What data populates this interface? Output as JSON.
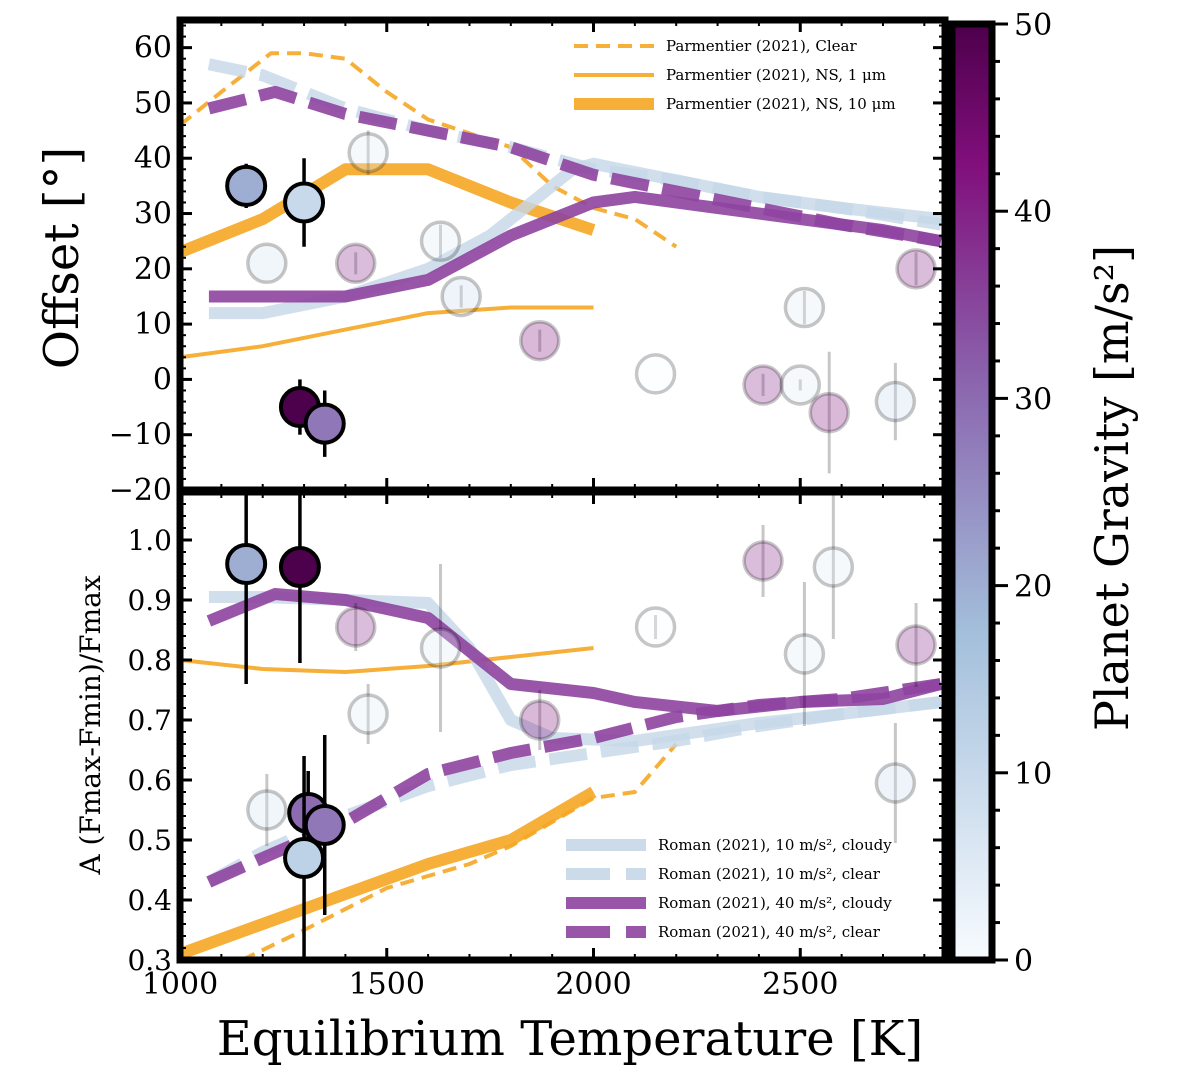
{
  "chart_data": {
    "type": "scatter",
    "xlabel": "Equilibrium Temperature [K]",
    "xlim": [
      1000,
      2850
    ],
    "x_ticks": [
      "1000",
      "1500",
      "2000",
      "2500"
    ],
    "x_tick_values": [
      1000,
      1500,
      2000,
      2500
    ],
    "colorbar": {
      "label": "Planet Gravity [m/s²]",
      "range": [
        0,
        50
      ],
      "tick_values": [
        0,
        10,
        20,
        30,
        40,
        50
      ],
      "tick_labels": [
        "0",
        "10",
        "20",
        "30",
        "40",
        "50"
      ],
      "colors": [
        "#f7fbff",
        "#a3bfdb",
        "#8c6bb1",
        "#810f7c",
        "#4d004b"
      ]
    },
    "panels": [
      {
        "id": "top",
        "ylabel": "Offset [°]",
        "ylim": [
          -20,
          65
        ],
        "y_ticks": [
          "60",
          "50",
          "40",
          "30",
          "20",
          "10",
          "0",
          "−10",
          "−20"
        ],
        "y_tick_values": [
          60,
          50,
          40,
          30,
          20,
          10,
          0,
          -10,
          -20
        ],
        "models": [
          {
            "name": "Parmentier (2021), Clear",
            "color": "#f5a623",
            "style": "dashed-thin",
            "x": [
              1000,
              1100,
              1220,
              1300,
              1400,
              1500,
              1600,
              1800,
              1900,
              2000,
              2100,
              2200
            ],
            "y": [
              46,
              52,
              59,
              59,
              58,
              52,
              47,
              42,
              35,
              31,
              29,
              24
            ]
          },
          {
            "name": "Parmentier (2021), NS, 1 μm",
            "color": "#f5a623",
            "style": "solid-thin",
            "x": [
              1000,
              1200,
              1400,
              1600,
              1800,
              2000
            ],
            "y": [
              4,
              6,
              9,
              12,
              13,
              13
            ]
          },
          {
            "name": "Parmentier (2021), NS, 10 μm",
            "color": "#f5a623",
            "style": "solid-thick",
            "x": [
              1000,
              1200,
              1400,
              1600,
              1800,
              2000
            ],
            "y": [
              23,
              29,
              38,
              38,
              32,
              27
            ]
          },
          {
            "name": "Roman (2021), 10 m/s², cloudy",
            "color": "#c6d7e8",
            "style": "solid-thick",
            "x": [
              1070,
              1200,
              1400,
              1600,
              1750,
              1850,
              1950,
              2000,
              2200,
              2400,
              2600,
              2840
            ],
            "y": [
              12,
              12,
              15,
              20,
              26,
              32,
              38,
              39,
              36,
              33,
              31,
              29
            ]
          },
          {
            "name": "Roman (2021), 10 m/s², clear",
            "color": "#c6d7e8",
            "style": "dashed-thick",
            "x": [
              1070,
              1200,
              1400,
              1600,
              1800,
              2000,
              2200,
              2400,
              2600,
              2840
            ],
            "y": [
              57,
              55,
              49,
              45,
              42,
              38,
              36,
              33,
              31,
              28
            ]
          },
          {
            "name": "Roman (2021), 40 m/s², cloudy",
            "color": "#8e44a0",
            "style": "solid-thick",
            "x": [
              1070,
              1200,
              1400,
              1600,
              1800,
              2000,
              2100,
              2300,
              2500,
              2700,
              2840
            ],
            "y": [
              15,
              15,
              15,
              18,
              26,
              32,
              33,
              31,
              29,
              27,
              25
            ]
          },
          {
            "name": "Roman (2021), 40 m/s², clear",
            "color": "#8e44a0",
            "style": "dashed-thick",
            "x": [
              1070,
              1230,
              1400,
              1600,
              1800,
              2000,
              2200,
              2400,
              2600,
              2840
            ],
            "y": [
              49,
              52,
              48,
              45,
              42,
              37,
              34,
              31,
              28,
              25
            ]
          }
        ],
        "highlighted_points": [
          {
            "x": 1160,
            "y": 35,
            "err": 4,
            "gravity": 20
          },
          {
            "x": 1300,
            "y": 32,
            "err": 8,
            "gravity": 10
          },
          {
            "x": 1290,
            "y": -5,
            "err": 5,
            "gravity": 50
          },
          {
            "x": 1350,
            "y": -8,
            "err": 6,
            "gravity": 28
          }
        ],
        "faded_points": [
          {
            "x": 1210,
            "y": 21,
            "err": 0,
            "gravity": 8
          },
          {
            "x": 1455,
            "y": 41,
            "err": 4,
            "gravity": 5
          },
          {
            "x": 1425,
            "y": 21,
            "err": 2,
            "gravity": 40
          },
          {
            "x": 1630,
            "y": 25,
            "err": 3,
            "gravity": 5
          },
          {
            "x": 1680,
            "y": 15,
            "err": 2,
            "gravity": 10
          },
          {
            "x": 1870,
            "y": 7,
            "err": 2,
            "gravity": 42
          },
          {
            "x": 2150,
            "y": 1,
            "err": 0,
            "gravity": 0
          },
          {
            "x": 2410,
            "y": -1,
            "err": 2,
            "gravity": 40
          },
          {
            "x": 2500,
            "y": -1,
            "err": 1,
            "gravity": 5
          },
          {
            "x": 2510,
            "y": 13,
            "err": 3,
            "gravity": 5
          },
          {
            "x": 2570,
            "y": -6,
            "err": 11,
            "gravity": 42
          },
          {
            "x": 2730,
            "y": -4,
            "err": 7,
            "gravity": 10
          },
          {
            "x": 2780,
            "y": 20,
            "err": 3,
            "gravity": 40
          }
        ]
      },
      {
        "id": "bottom",
        "ylabel": "A (Fmax-Fmin)/Fmax",
        "ylim": [
          0.3,
          1.08
        ],
        "y_ticks": [
          "1.0",
          "0.9",
          "0.8",
          "0.7",
          "0.6",
          "0.5",
          "0.4",
          "0.3"
        ],
        "y_tick_values": [
          1.0,
          0.9,
          0.8,
          0.7,
          0.6,
          0.5,
          0.4,
          0.3
        ],
        "models": [
          {
            "name": "Parmentier (2021), Clear",
            "color": "#f5a623",
            "style": "dashed-thin",
            "x": [
              1150,
              1300,
              1500,
              1700,
              1800,
              1900,
              2000,
              2100,
              2200
            ],
            "y": [
              0.3,
              0.35,
              0.42,
              0.46,
              0.49,
              0.53,
              0.57,
              0.58,
              0.66
            ]
          },
          {
            "name": "Parmentier (2021), NS, 1 μm",
            "color": "#f5a623",
            "style": "solid-thin",
            "x": [
              1000,
              1200,
              1400,
              1600,
              1800,
              2000
            ],
            "y": [
              0.8,
              0.785,
              0.78,
              0.79,
              0.805,
              0.82
            ]
          },
          {
            "name": "Parmentier (2021), NS, 10 μm",
            "color": "#f5a623",
            "style": "solid-thick",
            "x": [
              1000,
              1200,
              1400,
              1600,
              1800,
              2000
            ],
            "y": [
              0.31,
              0.36,
              0.41,
              0.46,
              0.5,
              0.58
            ]
          },
          {
            "name": "Roman (2021), 10 m/s², cloudy",
            "color": "#c6d7e8",
            "style": "solid-thick",
            "x": [
              1070,
              1200,
              1400,
              1600,
              1700,
              1800,
              1900,
              2100,
              2400,
              2600,
              2840
            ],
            "y": [
              0.905,
              0.905,
              0.9,
              0.895,
              0.82,
              0.7,
              0.67,
              0.665,
              0.695,
              0.71,
              0.73
            ]
          },
          {
            "name": "Roman (2021), 10 m/s², clear",
            "color": "#c6d7e8",
            "style": "dashed-thick",
            "x": [
              1070,
              1200,
              1400,
              1600,
              1800,
              2000,
              2200,
              2400,
              2600,
              2840
            ],
            "y": [
              0.43,
              0.48,
              0.54,
              0.59,
              0.625,
              0.645,
              0.665,
              0.69,
              0.71,
              0.73
            ]
          },
          {
            "name": "Roman (2021), 40 m/s², cloudy",
            "color": "#8e44a0",
            "style": "solid-thick",
            "x": [
              1070,
              1230,
              1400,
              1600,
              1800,
              2000,
              2100,
              2300,
              2500,
              2700,
              2840
            ],
            "y": [
              0.865,
              0.91,
              0.9,
              0.87,
              0.76,
              0.745,
              0.73,
              0.715,
              0.73,
              0.735,
              0.76
            ]
          },
          {
            "name": "Roman (2021), 40 m/s², clear",
            "color": "#8e44a0",
            "style": "dashed-thick",
            "x": [
              1070,
              1200,
              1400,
              1600,
              1800,
              2000,
              2200,
              2400,
              2600,
              2840
            ],
            "y": [
              0.43,
              0.47,
              0.53,
              0.61,
              0.645,
              0.67,
              0.705,
              0.725,
              0.735,
              0.76
            ]
          }
        ],
        "highlighted_points": [
          {
            "x": 1160,
            "y": 0.96,
            "err": 0.2,
            "gravity": 20
          },
          {
            "x": 1290,
            "y": 0.955,
            "err": 0.16,
            "gravity": 50
          },
          {
            "x": 1310,
            "y": 0.545,
            "err": 0.07,
            "gravity": 30
          },
          {
            "x": 1350,
            "y": 0.525,
            "err": 0.15,
            "gravity": 28
          },
          {
            "x": 1300,
            "y": 0.47,
            "err": 0.17,
            "gravity": 12
          }
        ],
        "faded_points": [
          {
            "x": 1210,
            "y": 0.55,
            "err": 0.06,
            "gravity": 8
          },
          {
            "x": 1455,
            "y": 0.71,
            "err": 0.05,
            "gravity": 5
          },
          {
            "x": 1425,
            "y": 0.855,
            "err": 0.04,
            "gravity": 40
          },
          {
            "x": 1630,
            "y": 0.82,
            "err": 0.14,
            "gravity": 5
          },
          {
            "x": 1870,
            "y": 0.7,
            "err": 0.05,
            "gravity": 42
          },
          {
            "x": 2150,
            "y": 0.855,
            "err": 0.02,
            "gravity": 0
          },
          {
            "x": 2410,
            "y": 0.965,
            "err": 0.06,
            "gravity": 40
          },
          {
            "x": 2510,
            "y": 0.81,
            "err": 0.12,
            "gravity": 5
          },
          {
            "x": 2580,
            "y": 0.955,
            "err": 0.12,
            "gravity": 5
          },
          {
            "x": 2730,
            "y": 0.595,
            "err": 0.1,
            "gravity": 10
          },
          {
            "x": 2780,
            "y": 0.825,
            "err": 0.07,
            "gravity": 40
          }
        ]
      }
    ],
    "legends": {
      "top": [
        "Parmentier (2021), Clear",
        "Parmentier (2021), NS, 1 μm",
        "Parmentier (2021), NS, 10 μm"
      ],
      "bottom": [
        "Roman (2021), 10 m/s², cloudy",
        "Roman (2021), 10 m/s², clear",
        "Roman (2021), 40 m/s², cloudy",
        "Roman (2021), 40 m/s², clear"
      ]
    }
  }
}
